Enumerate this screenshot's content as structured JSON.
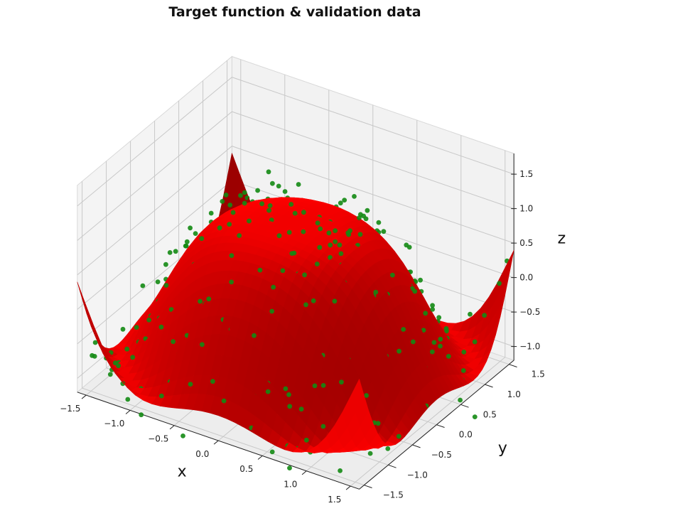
{
  "chart_data": {
    "type": "surface3d",
    "title": "Target function & validation data",
    "xlabel": "x",
    "ylabel": "y",
    "zlabel": "z",
    "xlim": [
      -1.6,
      1.6
    ],
    "ylim": [
      -1.6,
      1.6
    ],
    "zlim": [
      -1.2,
      1.8
    ],
    "x_ticks": [
      "−1.5",
      "−1.0",
      "−0.5",
      "0.0",
      "0.5",
      "1.0",
      "1.5"
    ],
    "y_ticks": [
      "−1.5",
      "−1.0",
      "−0.5",
      "0.0",
      "0.5",
      "1.0",
      "1.5"
    ],
    "z_ticks": [
      "−1.0",
      "−0.5",
      "0.0",
      "0.5",
      "1.0",
      "1.5"
    ],
    "x_tick_values": [
      -1.5,
      -1.0,
      -0.5,
      0.0,
      0.5,
      1.0,
      1.5
    ],
    "y_tick_values": [
      -1.5,
      -1.0,
      -0.5,
      0.0,
      0.5,
      1.0,
      1.5
    ],
    "z_tick_values": [
      -1.0,
      -0.5,
      0.0,
      0.5,
      1.0,
      1.5
    ],
    "surface": {
      "function": "z = cos(x^2 + y^2)",
      "x_range": [
        -1.6,
        1.6
      ],
      "y_range": [
        -1.6,
        1.6
      ],
      "color": "#e00000"
    },
    "validation_points": {
      "count": 420,
      "x_range": [
        -1.6,
        1.6
      ],
      "y_range": [
        -1.6,
        1.6
      ],
      "noise_sd": 0.2,
      "color": "#138a13"
    },
    "grid": true,
    "pane_color": "#f2f2f2"
  }
}
